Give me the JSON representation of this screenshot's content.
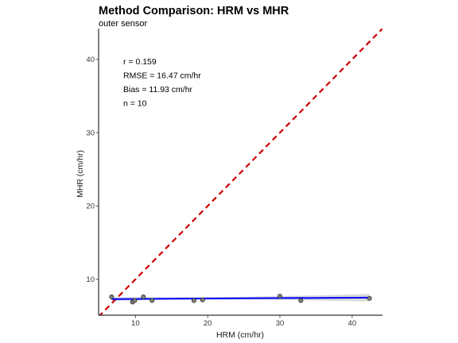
{
  "chart_data": {
    "type": "scatter",
    "title": "Method Comparison: HRM vs MHR",
    "subtitle": "outer sensor",
    "xlabel": "HRM (cm/hr)",
    "ylabel": "MHR (cm/hr)",
    "xlim": [
      4.9,
      44.2
    ],
    "ylim": [
      5.1,
      44.2
    ],
    "xticks": [
      10,
      20,
      30,
      40
    ],
    "yticks": [
      10,
      20,
      30,
      40
    ],
    "grid": false,
    "points": [
      {
        "x": 6.7,
        "y": 7.6
      },
      {
        "x": 9.6,
        "y": 6.9
      },
      {
        "x": 9.9,
        "y": 7.1
      },
      {
        "x": 11.1,
        "y": 7.6
      },
      {
        "x": 12.3,
        "y": 7.1
      },
      {
        "x": 18.1,
        "y": 7.1
      },
      {
        "x": 19.3,
        "y": 7.2
      },
      {
        "x": 30.0,
        "y": 7.7
      },
      {
        "x": 32.9,
        "y": 7.1
      },
      {
        "x": 42.4,
        "y": 7.4
      }
    ],
    "identity_line": {
      "color": "#cc0000",
      "style": "dashed"
    },
    "fit_line": {
      "x": [
        6.7,
        42.4
      ],
      "y": [
        7.3,
        7.5
      ],
      "color": "#0000ff",
      "ci_band": {
        "x": [
          6.7,
          15,
          25,
          35,
          42.4
        ],
        "lower": [
          7.05,
          7.25,
          7.25,
          7.1,
          7.0
        ],
        "upper": [
          7.55,
          7.55,
          7.6,
          7.8,
          8.0
        ],
        "color": "#bebebe"
      }
    },
    "annotations": [
      "r = 0.159",
      "RMSE = 16.47 cm/hr",
      "Bias = 11.93 cm/hr",
      "n = 10"
    ]
  }
}
